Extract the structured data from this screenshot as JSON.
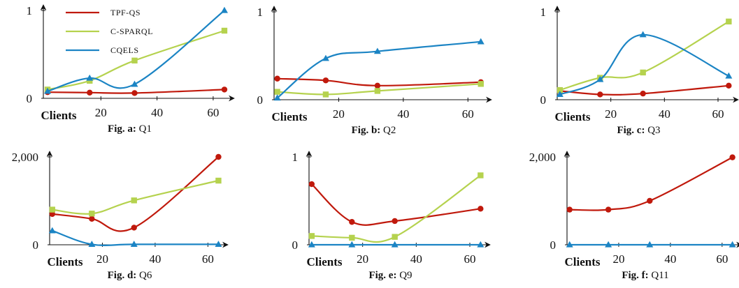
{
  "colors": {
    "TPF-QS": "#c0190c",
    "C-SPARQL": "#b5d24e",
    "CQELS": "#1b84c4"
  },
  "legend": [
    "TPF-QS",
    "C-SPARQL",
    "CQELS"
  ],
  "chart_data": [
    {
      "type": "line",
      "caption_prefix": "Fig. a:",
      "caption_name": "Q1",
      "xlabel": "Clients",
      "xticks": [
        "20",
        "40",
        "60"
      ],
      "xtick_values": [
        20,
        40,
        60
      ],
      "yticks": [
        "0",
        "1"
      ],
      "ytick_values": [
        0,
        1
      ],
      "xlim": [
        0,
        66
      ],
      "ylim": [
        0,
        1
      ],
      "series": [
        {
          "name": "TPF-QS",
          "x": [
            1,
            16,
            32,
            64
          ],
          "values": [
            0.07,
            0.065,
            0.06,
            0.1
          ]
        },
        {
          "name": "C-SPARQL",
          "x": [
            1,
            16,
            32,
            64
          ],
          "values": [
            0.1,
            0.2,
            0.43,
            0.77
          ]
        },
        {
          "name": "CQELS",
          "x": [
            1,
            16,
            32,
            64
          ],
          "values": [
            0.08,
            0.23,
            0.16,
            1.0
          ]
        }
      ]
    },
    {
      "type": "line",
      "caption_prefix": "Fig. b:",
      "caption_name": "Q2",
      "xlabel": "Clients",
      "xticks": [
        "20",
        "40",
        "60"
      ],
      "xtick_values": [
        20,
        40,
        60
      ],
      "yticks": [
        "0",
        "1"
      ],
      "ytick_values": [
        0,
        1
      ],
      "xlim": [
        0,
        66
      ],
      "ylim": [
        0,
        1
      ],
      "series": [
        {
          "name": "TPF-QS",
          "x": [
            1,
            16,
            32,
            64
          ],
          "values": [
            0.24,
            0.22,
            0.16,
            0.2
          ]
        },
        {
          "name": "C-SPARQL",
          "x": [
            1,
            16,
            32,
            64
          ],
          "values": [
            0.09,
            0.06,
            0.1,
            0.18
          ]
        },
        {
          "name": "CQELS",
          "x": [
            1,
            16,
            32,
            64
          ],
          "values": [
            0.02,
            0.47,
            0.55,
            0.66
          ]
        }
      ]
    },
    {
      "type": "line",
      "caption_prefix": "Fig. c:",
      "caption_name": "Q3",
      "xlabel": "Clients",
      "xticks": [
        "20",
        "40",
        "60"
      ],
      "xtick_values": [
        20,
        40,
        60
      ],
      "yticks": [
        "0",
        "1"
      ],
      "ytick_values": [
        0,
        1
      ],
      "xlim": [
        0,
        66
      ],
      "ylim": [
        0,
        1
      ],
      "series": [
        {
          "name": "TPF-QS",
          "x": [
            1,
            16,
            32,
            64
          ],
          "values": [
            0.1,
            0.06,
            0.07,
            0.16
          ]
        },
        {
          "name": "C-SPARQL",
          "x": [
            1,
            16,
            32,
            64
          ],
          "values": [
            0.11,
            0.25,
            0.31,
            0.89
          ]
        },
        {
          "name": "CQELS",
          "x": [
            1,
            16,
            32,
            64
          ],
          "values": [
            0.06,
            0.23,
            0.74,
            0.27
          ]
        }
      ]
    },
    {
      "type": "line",
      "caption_prefix": "Fig. d:",
      "caption_name": "Q6",
      "xlabel": "Clients",
      "xticks": [
        "20",
        "40",
        "60"
      ],
      "xtick_values": [
        20,
        40,
        60
      ],
      "yticks": [
        "0",
        "2,000"
      ],
      "ytick_values": [
        0,
        2000
      ],
      "xlim": [
        0,
        66
      ],
      "ylim": [
        0,
        2000
      ],
      "series": [
        {
          "name": "TPF-QS",
          "x": [
            1,
            16,
            32,
            64
          ],
          "values": [
            700,
            590,
            390,
            2000
          ]
        },
        {
          "name": "C-SPARQL",
          "x": [
            1,
            16,
            32,
            64
          ],
          "values": [
            800,
            710,
            1010,
            1460
          ]
        },
        {
          "name": "CQELS",
          "x": [
            1,
            16,
            32,
            64
          ],
          "values": [
            320,
            10,
            10,
            10
          ]
        }
      ]
    },
    {
      "type": "line",
      "caption_prefix": "Fig. e:",
      "caption_name": "Q9",
      "xlabel": "Clients",
      "xticks": [
        "20",
        "40",
        "60"
      ],
      "xtick_values": [
        20,
        40,
        60
      ],
      "yticks": [
        "0",
        "1"
      ],
      "ytick_values": [
        0,
        1
      ],
      "xlim": [
        0,
        66
      ],
      "ylim": [
        0,
        1
      ],
      "series": [
        {
          "name": "TPF-QS",
          "x": [
            1,
            16,
            32,
            64
          ],
          "values": [
            0.69,
            0.26,
            0.27,
            0.41
          ]
        },
        {
          "name": "C-SPARQL",
          "x": [
            1,
            16,
            32,
            64
          ],
          "values": [
            0.1,
            0.08,
            0.09,
            0.79
          ]
        },
        {
          "name": "CQELS",
          "x": [
            1,
            16,
            32,
            64
          ],
          "values": [
            0,
            0,
            0,
            0
          ]
        }
      ]
    },
    {
      "type": "line",
      "caption_prefix": "Fig. f:",
      "caption_name": "Q11",
      "xlabel": "Clients",
      "xticks": [
        "20",
        "40",
        "60"
      ],
      "xtick_values": [
        20,
        40,
        60
      ],
      "yticks": [
        "0",
        "2,000"
      ],
      "ytick_values": [
        0,
        2000
      ],
      "xlim": [
        0,
        66
      ],
      "ylim": [
        0,
        2000
      ],
      "series": [
        {
          "name": "TPF-QS",
          "x": [
            1,
            16,
            32,
            64
          ],
          "values": [
            800,
            800,
            1000,
            1990
          ]
        },
        {
          "name": "CQELS",
          "x": [
            1,
            16,
            32,
            64
          ],
          "values": [
            0,
            0,
            0,
            0
          ]
        }
      ]
    }
  ]
}
